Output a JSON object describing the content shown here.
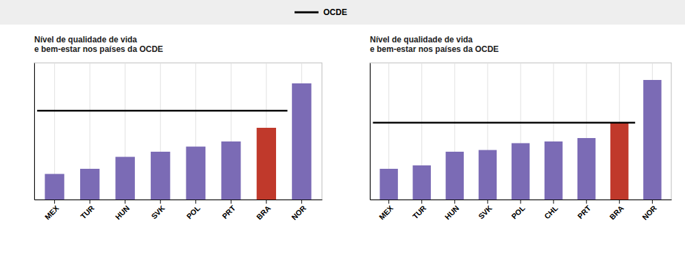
{
  "chart_data": [
    {
      "type": "bar",
      "title": "Nível de qualidade de vida\ne bem-estar nos países da OCDE",
      "categories": [
        "MEX",
        "TUR",
        "HUN",
        "SVK",
        "POL",
        "PRT",
        "BRA",
        "NOR"
      ],
      "values": [
        1.5,
        1.8,
        2.5,
        2.8,
        3.1,
        3.4,
        4.2,
        6.8
      ],
      "colors": [
        "#7B6BB5",
        "#7B6BB5",
        "#7B6BB5",
        "#7B6BB5",
        "#7B6BB5",
        "#7B6BB5",
        "#C0392B",
        "#7B6BB5"
      ],
      "reference_line": 5.2,
      "reference_line_label": "OCDE",
      "ylim": [
        0,
        8.0
      ],
      "grid": true,
      "tick_labels": "x"
    },
    {
      "type": "bar",
      "title": "Nível de qualidade de vida\ne bem-estar nos países da OCDE",
      "categories": [
        "MEX",
        "TUR",
        "HUN",
        "SVK",
        "POL",
        "CHL",
        "PRT",
        "BRA",
        "NOR"
      ],
      "values": [
        1.8,
        2.0,
        2.8,
        2.9,
        3.3,
        3.4,
        3.6,
        4.5,
        7.0
      ],
      "colors": [
        "#7B6BB5",
        "#7B6BB5",
        "#7B6BB5",
        "#7B6BB5",
        "#7B6BB5",
        "#7B6BB5",
        "#7B6BB5",
        "#C0392B",
        "#7B6BB5"
      ],
      "reference_line": 4.5,
      "ylim": [
        0,
        8.0
      ],
      "grid": true,
      "tick_labels": "x"
    }
  ]
}
